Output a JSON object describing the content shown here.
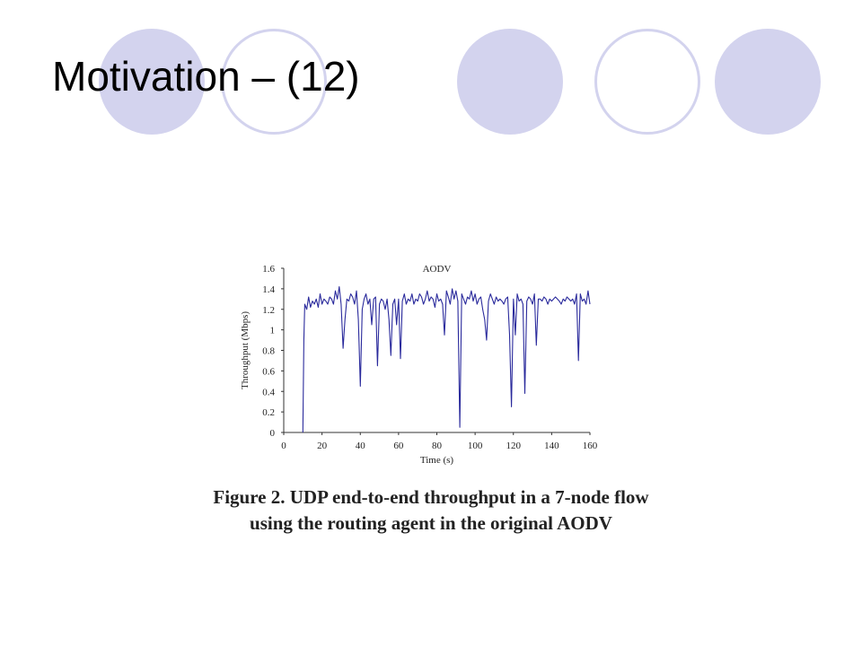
{
  "slide": {
    "title": "Motivation – (12)"
  },
  "figure": {
    "caption_line1": "Figure 2. UDP end-to-end throughput in a 7-node flow",
    "caption_line2": "using the routing agent in the original AODV"
  },
  "colors": {
    "circle_fill": "#d3d3ee",
    "series_line": "#2a2a9c"
  },
  "chart_data": {
    "type": "line",
    "title": "AODV",
    "xlabel": "Time (s)",
    "ylabel": "Throughput (Mbps)",
    "xlim": [
      0,
      160
    ],
    "ylim": [
      0,
      1.6
    ],
    "xticks": [
      "0",
      "20",
      "40",
      "60",
      "80",
      "100",
      "120",
      "140",
      "160"
    ],
    "yticks": [
      "0",
      "0.2",
      "0.4",
      "0.6",
      "0.8",
      "1",
      "1.2",
      "1.4",
      "1.6"
    ],
    "grid": false,
    "series": [
      {
        "x": [
          10,
          10.5,
          11,
          12,
          13,
          14,
          15,
          16,
          17,
          18,
          19,
          20,
          21,
          22,
          23,
          24,
          25,
          26,
          27,
          28,
          29,
          30,
          31,
          32,
          33,
          34,
          35,
          36,
          37,
          38,
          39,
          40,
          41,
          42,
          43,
          44,
          45,
          46,
          47,
          48,
          49,
          50,
          51,
          52,
          53,
          54,
          55,
          56,
          57,
          58,
          59,
          60,
          61,
          62,
          63,
          64,
          65,
          66,
          67,
          68,
          69,
          70,
          71,
          72,
          73,
          74,
          75,
          76,
          77,
          78,
          79,
          80,
          81,
          82,
          83,
          84,
          85,
          86,
          87,
          88,
          89,
          90,
          91,
          92,
          93,
          94,
          95,
          96,
          97,
          98,
          99,
          100,
          101,
          102,
          103,
          104,
          105,
          106,
          107,
          108,
          109,
          110,
          111,
          112,
          113,
          114,
          115,
          116,
          117,
          118,
          119,
          120,
          121,
          122,
          123,
          124,
          125,
          126,
          127,
          128,
          129,
          130,
          131,
          132,
          133,
          134,
          135,
          136,
          137,
          138,
          139,
          140,
          141,
          142,
          143,
          144,
          145,
          146,
          147,
          148,
          149,
          150,
          151,
          152,
          153,
          154,
          155,
          156,
          157,
          158,
          159,
          160
        ],
        "y": [
          0,
          0.9,
          1.25,
          1.2,
          1.32,
          1.22,
          1.28,
          1.25,
          1.3,
          1.22,
          1.35,
          1.25,
          1.3,
          1.28,
          1.25,
          1.32,
          1.3,
          1.25,
          1.38,
          1.3,
          1.42,
          1.25,
          0.82,
          1.1,
          1.3,
          1.28,
          1.35,
          1.32,
          1.25,
          1.38,
          1.1,
          0.45,
          1.2,
          1.3,
          1.35,
          1.25,
          1.3,
          1.05,
          1.3,
          1.32,
          0.65,
          1.25,
          1.3,
          1.28,
          1.2,
          1.3,
          1.1,
          0.75,
          1.25,
          1.3,
          1.05,
          1.3,
          0.72,
          1.28,
          1.35,
          1.25,
          1.3,
          1.28,
          1.35,
          1.25,
          1.3,
          1.28,
          1.35,
          1.32,
          1.25,
          1.3,
          1.38,
          1.28,
          1.32,
          1.3,
          1.22,
          1.35,
          1.28,
          1.3,
          1.25,
          0.95,
          1.38,
          1.32,
          1.25,
          1.4,
          1.3,
          1.38,
          1.28,
          0.05,
          1.35,
          1.3,
          1.25,
          1.32,
          1.3,
          1.38,
          1.28,
          1.35,
          1.25,
          1.3,
          1.32,
          1.2,
          1.1,
          0.9,
          1.28,
          1.35,
          1.3,
          1.25,
          1.32,
          1.28,
          1.3,
          1.28,
          1.25,
          1.3,
          1.32,
          0.95,
          0.25,
          1.3,
          0.95,
          1.35,
          1.28,
          1.3,
          1.25,
          0.38,
          1.28,
          1.32,
          1.3,
          1.25,
          1.35,
          0.85,
          1.3,
          1.3,
          1.28,
          1.32,
          1.3,
          1.25,
          1.3,
          1.28,
          1.3,
          1.32,
          1.3,
          1.28,
          1.25,
          1.3,
          1.28,
          1.32,
          1.3,
          1.28,
          1.3,
          1.25,
          1.35,
          0.7,
          1.35,
          1.28,
          1.3,
          1.25,
          1.38,
          1.25
        ]
      }
    ]
  }
}
